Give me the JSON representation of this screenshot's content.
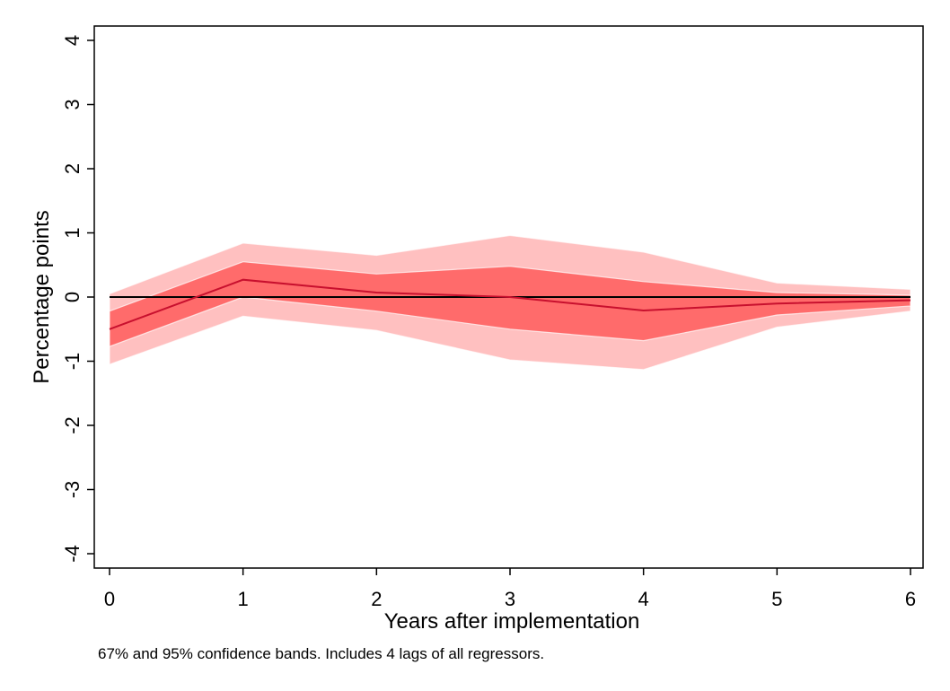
{
  "chart_data": {
    "type": "line",
    "xlabel": "Years after implementation",
    "ylabel": "Percentage points",
    "note": "67% and 95% confidence bands. Includes 4 lags of all regressors.",
    "xlim": [
      0,
      6
    ],
    "ylim": [
      -4,
      4
    ],
    "x_ticks": [
      "0",
      "1",
      "2",
      "3",
      "4",
      "5",
      "6"
    ],
    "y_ticks": [
      "-4",
      "-3",
      "-2",
      "-1",
      "0",
      "1",
      "2",
      "3",
      "4"
    ],
    "x": [
      0,
      1,
      2,
      3,
      4,
      5,
      6
    ],
    "series": [
      {
        "values": [
          -0.5,
          0.27,
          0.07,
          0.0,
          -0.21,
          -0.1,
          -0.05
        ]
      }
    ],
    "bands": [
      {
        "level": "95%",
        "lower": [
          -1.05,
          -0.3,
          -0.52,
          -0.98,
          -1.13,
          -0.47,
          -0.22
        ],
        "upper": [
          0.05,
          0.84,
          0.65,
          0.96,
          0.7,
          0.22,
          0.12
        ],
        "color": "#ffc0c0"
      },
      {
        "level": "67%",
        "lower": [
          -0.77,
          0.0,
          -0.22,
          -0.5,
          -0.68,
          -0.28,
          -0.14
        ],
        "upper": [
          -0.22,
          0.55,
          0.36,
          0.48,
          0.24,
          0.07,
          0.03
        ],
        "color": "#ff6b6b"
      }
    ],
    "reference_line": 0,
    "line_color": "#c8102e",
    "grid": false,
    "legend": "none"
  }
}
